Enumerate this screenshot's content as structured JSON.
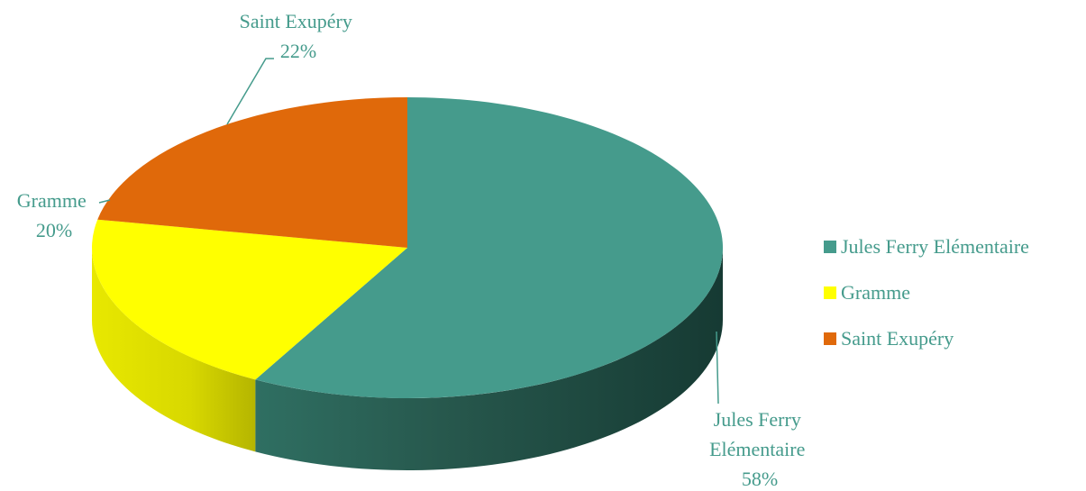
{
  "chart_data": {
    "type": "pie",
    "style": "3d",
    "title": "",
    "slices": [
      {
        "label": "Jules Ferry Elémentaire",
        "value": 58,
        "display_lines": [
          "Jules Ferry",
          "Elémentaire",
          "58%"
        ],
        "color": "#459b8c",
        "side_color": "#1f4a41"
      },
      {
        "label": "Gramme",
        "value": 20,
        "display_lines": [
          "Gramme",
          "20%"
        ],
        "color": "#ffff00",
        "side_color": "#c8c800"
      },
      {
        "label": "Saint Exupéry",
        "value": 22,
        "display_lines": [
          "Saint Exupéry",
          "22%"
        ],
        "color": "#e0690a",
        "side_color": "#a04a06"
      }
    ],
    "legend": {
      "placement": "right",
      "entries": [
        "Jules Ferry Elémentaire",
        "Gramme",
        "Saint Exupéry"
      ]
    },
    "label_color": "#459b8c"
  }
}
